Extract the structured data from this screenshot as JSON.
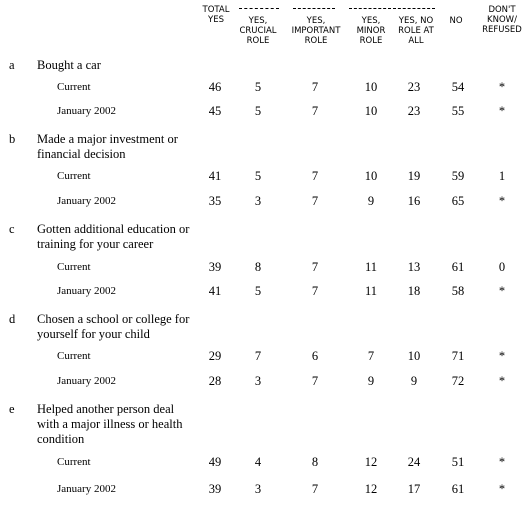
{
  "headers": {
    "total_yes": "TOTAL YES",
    "crucial": "YES, CRUCIAL ROLE",
    "important": "YES, IMPORTANT ROLE",
    "minor": "YES, MINOR ROLE",
    "no_role": "YES, NO ROLE AT ALL",
    "no": "NO",
    "dk": "DON'T KNOW/ REFUSED"
  },
  "items": [
    {
      "letter": "a",
      "question": "Bought a car",
      "rows": [
        {
          "label": "Current",
          "values": [
            "46",
            "5",
            "7",
            "10",
            "23",
            "54",
            "*"
          ]
        },
        {
          "label": "January 2002",
          "values": [
            "45",
            "5",
            "7",
            "10",
            "23",
            "55",
            "*"
          ]
        }
      ]
    },
    {
      "letter": "b",
      "question": "Made a major investment or financial decision",
      "rows": [
        {
          "label": "Current",
          "values": [
            "41",
            "5",
            "7",
            "10",
            "19",
            "59",
            "1"
          ]
        },
        {
          "label": "January 2002",
          "values": [
            "35",
            "3",
            "7",
            "9",
            "16",
            "65",
            "*"
          ]
        }
      ]
    },
    {
      "letter": "c",
      "question": "Gotten additional education or training for your career",
      "rows": [
        {
          "label": "Current",
          "values": [
            "39",
            "8",
            "7",
            "11",
            "13",
            "61",
            "0"
          ]
        },
        {
          "label": "January 2002",
          "values": [
            "41",
            "5",
            "7",
            "11",
            "18",
            "58",
            "*"
          ]
        }
      ]
    },
    {
      "letter": "d",
      "question": "Chosen a school or college for yourself for your child",
      "rows": [
        {
          "label": "Current",
          "values": [
            "29",
            "7",
            "6",
            "7",
            "10",
            "71",
            "*"
          ]
        },
        {
          "label": "January 2002",
          "values": [
            "28",
            "3",
            "7",
            "9",
            "9",
            "72",
            "*"
          ]
        }
      ]
    },
    {
      "letter": "e",
      "question": "Helped another person deal with a major illness or health condition",
      "rows": [
        {
          "label": "Current",
          "values": [
            "49",
            "4",
            "8",
            "12",
            "24",
            "51",
            "*"
          ]
        },
        {
          "label": "January 2002",
          "values": [
            "39",
            "3",
            "7",
            "12",
            "17",
            "61",
            "*"
          ]
        }
      ]
    }
  ]
}
